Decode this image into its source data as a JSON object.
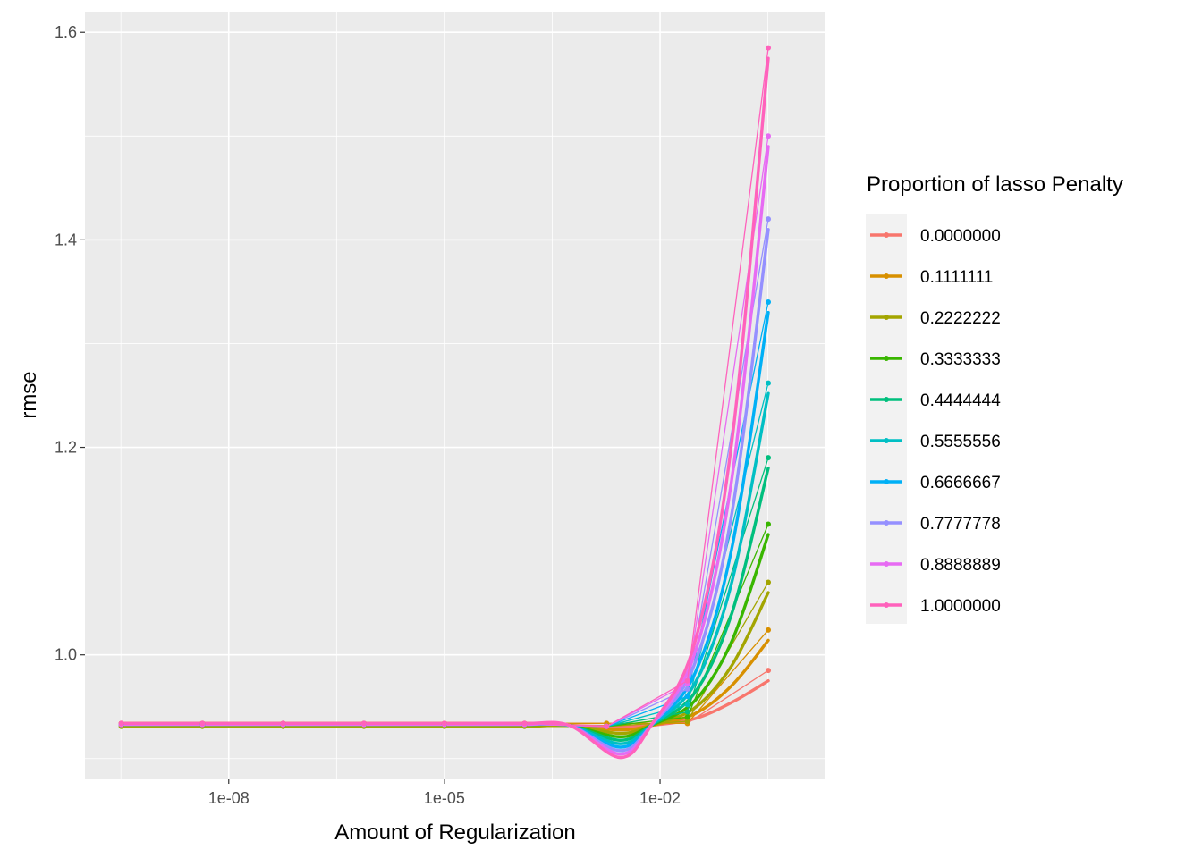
{
  "chart_data": {
    "type": "line",
    "title": "",
    "xlabel": "Amount of Regularization",
    "ylabel": "rmse",
    "x_scale": "log10",
    "xlim": [
      1e-10,
      2.0
    ],
    "ylim": [
      0.88,
      1.62
    ],
    "x_ticks": [
      1e-08,
      1e-05,
      0.01
    ],
    "x_tick_labels": [
      "1e-08",
      "1e-05",
      "1e-02"
    ],
    "y_ticks": [
      1.0,
      1.2,
      1.4,
      1.6
    ],
    "y_tick_labels": [
      "1.0",
      "1.2",
      "1.4",
      "1.6"
    ],
    "grid": true,
    "legend_position": "right",
    "legend_title": "Proportion of lasso Penalty",
    "x": [
      3.2e-10,
      4.3e-09,
      5.7e-08,
      7.6e-07,
      1e-05,
      0.00013,
      0.0018,
      0.024,
      0.32
    ],
    "series": [
      {
        "name": "0.0000000",
        "color": "#F8766D",
        "values": [
          0.934,
          0.934,
          0.934,
          0.934,
          0.934,
          0.934,
          0.934,
          0.934,
          0.985
        ]
      },
      {
        "name": "0.1111111",
        "color": "#D89000",
        "values": [
          0.934,
          0.934,
          0.934,
          0.934,
          0.934,
          0.934,
          0.934,
          0.934,
          1.024
        ]
      },
      {
        "name": "0.2222222",
        "color": "#A3A500",
        "values": [
          0.931,
          0.931,
          0.931,
          0.931,
          0.931,
          0.931,
          0.931,
          0.936,
          1.07
        ]
      },
      {
        "name": "0.3333333",
        "color": "#39B600",
        "values": [
          0.933,
          0.933,
          0.933,
          0.933,
          0.933,
          0.933,
          0.931,
          0.94,
          1.126
        ]
      },
      {
        "name": "0.4444444",
        "color": "#00BF7D",
        "values": [
          0.933,
          0.933,
          0.933,
          0.933,
          0.933,
          0.933,
          0.931,
          0.945,
          1.19
        ]
      },
      {
        "name": "0.5555556",
        "color": "#00BFC4",
        "values": [
          0.933,
          0.933,
          0.933,
          0.933,
          0.933,
          0.933,
          0.931,
          0.952,
          1.262
        ]
      },
      {
        "name": "0.6666667",
        "color": "#00B0F6",
        "values": [
          0.933,
          0.933,
          0.933,
          0.933,
          0.933,
          0.933,
          0.931,
          0.96,
          1.34
        ]
      },
      {
        "name": "0.7777778",
        "color": "#9590FF",
        "values": [
          0.933,
          0.933,
          0.933,
          0.933,
          0.933,
          0.933,
          0.931,
          0.967,
          1.42
        ]
      },
      {
        "name": "0.8888889",
        "color": "#E76BF3",
        "values": [
          0.933,
          0.933,
          0.933,
          0.933,
          0.933,
          0.933,
          0.931,
          0.972,
          1.5
        ]
      },
      {
        "name": "1.0000000",
        "color": "#FF62BC",
        "values": [
          0.934,
          0.934,
          0.934,
          0.934,
          0.934,
          0.934,
          0.931,
          0.975,
          1.585
        ]
      }
    ]
  }
}
